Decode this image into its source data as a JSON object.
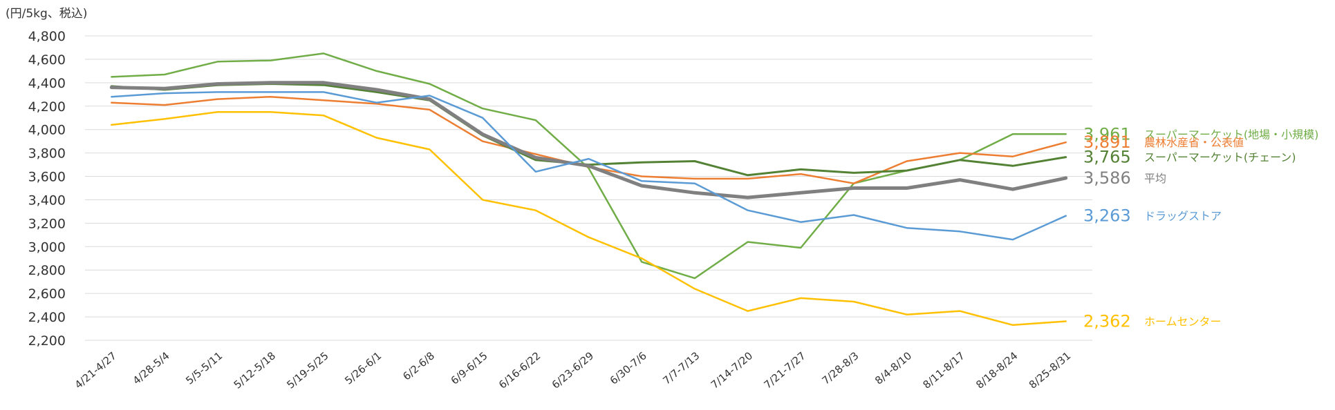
{
  "chart_data": {
    "type": "line",
    "unit_label": "(円/5kg、税込)",
    "ylim": [
      2200,
      4800
    ],
    "y_ticks": [
      "4,800",
      "4,600",
      "4,400",
      "4,200",
      "4,000",
      "3,800",
      "3,600",
      "3,400",
      "3,200",
      "3,000",
      "2,800",
      "2,600",
      "2,400",
      "2,200"
    ],
    "y_tick_values": [
      4800,
      4600,
      4400,
      4200,
      4000,
      3800,
      3600,
      3400,
      3200,
      3000,
      2800,
      2600,
      2400,
      2200
    ],
    "grid": true,
    "categories": [
      "4/21-4/27",
      "4/28-5/4",
      "5/5-5/11",
      "5/12-5/18",
      "5/19-5/25",
      "5/26-6/1",
      "6/2-6/8",
      "6/9-6/15",
      "6/16-6/22",
      "6/23-6/29",
      "6/30-7/6",
      "7/7-7/13",
      "7/14-7/20",
      "7/21-7/27",
      "7/28-8/3",
      "8/4-8/10",
      "8/11-8/17",
      "8/18-8/24",
      "8/25-8/31"
    ],
    "series": [
      {
        "name": "スーパーマーケット(地場・小規模)",
        "end_label": "3,961",
        "color": "#70AD47",
        "width": 2.5,
        "values": [
          4450,
          4470,
          4580,
          4590,
          4650,
          4500,
          4390,
          4180,
          4080,
          3670,
          2870,
          2730,
          3040,
          2990,
          3540,
          3650,
          3740,
          3961,
          3961
        ]
      },
      {
        "name": "農林水産省・公表値",
        "end_label": "3,891",
        "color": "#ED7D31",
        "width": 2.5,
        "values": [
          4230,
          4210,
          4260,
          4280,
          4250,
          4220,
          4170,
          3900,
          3790,
          3680,
          3600,
          3580,
          3580,
          3620,
          3540,
          3730,
          3800,
          3770,
          3891
        ]
      },
      {
        "name": "スーパーマーケット(チェーン)",
        "end_label": "3,765",
        "color": "#548235",
        "width": 3,
        "values": [
          4370,
          4340,
          4380,
          4390,
          4380,
          4320,
          4250,
          3950,
          3740,
          3700,
          3720,
          3730,
          3610,
          3660,
          3630,
          3650,
          3740,
          3690,
          3765
        ]
      },
      {
        "name": "平均",
        "end_label": "3,586",
        "color": "#808080",
        "width": 5,
        "values": [
          4360,
          4350,
          4390,
          4400,
          4400,
          4340,
          4260,
          3960,
          3760,
          3690,
          3520,
          3460,
          3420,
          3460,
          3500,
          3500,
          3570,
          3490,
          3586
        ]
      },
      {
        "name": "ドラッグストア",
        "end_label": "3,263",
        "color": "#5B9BD5",
        "width": 2.5,
        "values": [
          4280,
          4310,
          4320,
          4320,
          4320,
          4230,
          4290,
          4100,
          3640,
          3750,
          3560,
          3540,
          3310,
          3210,
          3270,
          3160,
          3130,
          3060,
          3263
        ]
      },
      {
        "name": "ホームセンター",
        "end_label": "2,362",
        "color": "#FFC000",
        "width": 2.5,
        "values": [
          4040,
          4090,
          4150,
          4150,
          4120,
          3930,
          3830,
          3400,
          3310,
          3080,
          2900,
          2640,
          2450,
          2560,
          2530,
          2420,
          2450,
          2330,
          2362
        ]
      }
    ]
  }
}
